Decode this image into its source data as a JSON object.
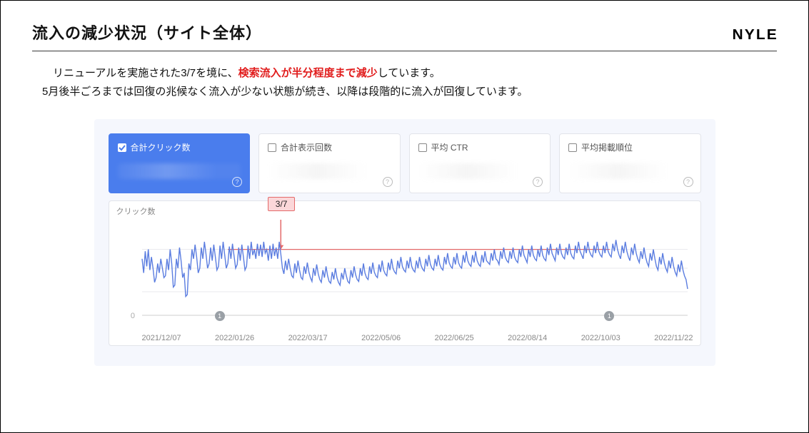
{
  "header": {
    "title": "流入の減少状況（サイト全体）",
    "logo": "NYLE"
  },
  "description": {
    "line1_prefix": "リニューアルを実施された3/7を境に、",
    "line1_highlight": "検索流入が半分程度まで減少",
    "line1_suffix": "しています。",
    "line2": "5月後半ごろまでは回復の兆候なく流入が少ない状態が続き、以降は段階的に流入が回復しています。"
  },
  "cards": [
    {
      "label": "合計クリック数",
      "active": true
    },
    {
      "label": "合計表示回数",
      "active": false
    },
    {
      "label": "平均 CTR",
      "active": false
    },
    {
      "label": "平均掲載順位",
      "active": false
    }
  ],
  "chart": {
    "type": "line",
    "y_axis_label": "クリック数",
    "line_color": "#5b7de0",
    "line_width": 1.4,
    "grid_color": "#e8e9ee",
    "axis_color": "#ccc",
    "background_color": "#ffffff",
    "annotation": {
      "label": "3/7",
      "x_index": 89,
      "color": "#e46a6a",
      "fill": "#fbd7d9"
    },
    "ref_line": {
      "y": 70,
      "color": "#e46a6a",
      "x_start_index": 55,
      "x_end_index": 300
    },
    "x_tick_labels": [
      "2021/12/07",
      "2022/01/26",
      "2022/03/17",
      "2022/05/06",
      "2022/06/25",
      "2022/08/14",
      "2022/10/03",
      "2022/11/22"
    ],
    "timeline_markers": [
      50,
      300
    ],
    "y_zero_label": "0",
    "ylim": [
      0,
      100
    ],
    "gridline_y": [
      25,
      50,
      70
    ],
    "values": [
      60,
      45,
      68,
      52,
      70,
      48,
      62,
      50,
      35,
      40,
      55,
      45,
      60,
      50,
      40,
      42,
      60,
      48,
      70,
      55,
      30,
      32,
      60,
      50,
      72,
      58,
      40,
      45,
      20,
      22,
      55,
      48,
      70,
      60,
      75,
      62,
      45,
      50,
      72,
      60,
      78,
      65,
      50,
      55,
      72,
      58,
      75,
      62,
      48,
      52,
      74,
      60,
      78,
      64,
      50,
      55,
      73,
      60,
      76,
      63,
      50,
      54,
      72,
      58,
      75,
      62,
      48,
      52,
      74,
      60,
      78,
      64,
      70,
      60,
      76,
      63,
      75,
      62,
      78,
      66,
      70,
      58,
      74,
      60,
      76,
      63,
      72,
      60,
      78,
      65,
      50,
      44,
      58,
      48,
      60,
      50,
      42,
      40,
      55,
      45,
      58,
      48,
      40,
      38,
      52,
      44,
      56,
      46,
      40,
      36,
      50,
      42,
      54,
      44,
      38,
      35,
      48,
      40,
      52,
      42,
      36,
      34,
      46,
      38,
      50,
      40,
      35,
      32,
      45,
      38,
      50,
      42,
      36,
      34,
      48,
      40,
      52,
      43,
      38,
      36,
      50,
      42,
      55,
      45,
      40,
      38,
      52,
      44,
      56,
      46,
      42,
      40,
      54,
      46,
      58,
      48,
      44,
      42,
      56,
      48,
      60,
      50,
      46,
      44,
      58,
      50,
      62,
      52,
      48,
      46,
      58,
      50,
      62,
      52,
      48,
      46,
      58,
      50,
      62,
      53,
      49,
      47,
      60,
      52,
      64,
      54,
      50,
      48,
      60,
      52,
      64,
      54,
      50,
      48,
      62,
      54,
      66,
      56,
      52,
      50,
      62,
      54,
      66,
      56,
      52,
      50,
      64,
      56,
      68,
      58,
      54,
      52,
      64,
      56,
      68,
      58,
      54,
      52,
      64,
      56,
      68,
      58,
      56,
      54,
      66,
      58,
      70,
      60,
      58,
      54,
      68,
      60,
      72,
      62,
      58,
      56,
      68,
      60,
      72,
      62,
      58,
      56,
      70,
      62,
      74,
      64,
      60,
      56,
      70,
      62,
      74,
      64,
      60,
      58,
      70,
      62,
      74,
      64,
      60,
      58,
      72,
      64,
      76,
      66,
      62,
      58,
      72,
      64,
      76,
      66,
      62,
      60,
      72,
      64,
      76,
      66,
      62,
      60,
      74,
      66,
      78,
      68,
      64,
      60,
      74,
      66,
      78,
      68,
      64,
      62,
      74,
      66,
      78,
      68,
      64,
      62,
      74,
      66,
      78,
      68,
      64,
      62,
      76,
      68,
      80,
      70,
      64,
      60,
      74,
      66,
      78,
      68,
      62,
      58,
      72,
      64,
      76,
      66,
      60,
      56,
      68,
      60,
      72,
      62,
      56,
      52,
      66,
      58,
      70,
      60,
      52,
      48,
      62,
      54,
      66,
      56,
      50,
      46,
      58,
      50,
      62,
      52,
      46,
      42,
      54,
      46,
      58,
      48,
      42,
      38,
      28
    ]
  }
}
